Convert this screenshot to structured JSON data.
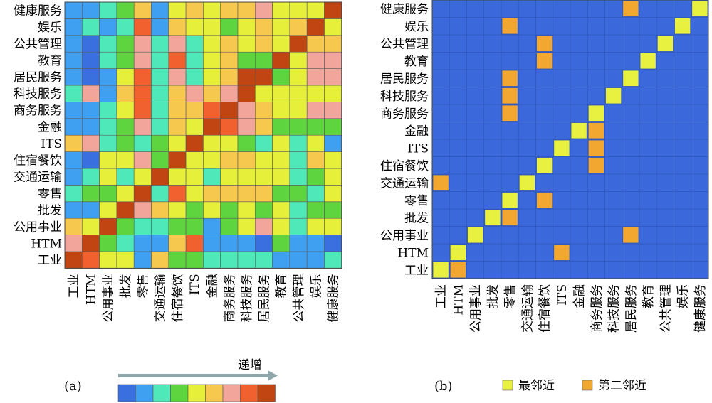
{
  "chart_data": [
    {
      "type": "heatmap",
      "panel_label": "(a)",
      "categories": [
        "工业",
        "HTM",
        "公用事业",
        "批发",
        "零售",
        "交通运输",
        "住宿餐饮",
        "ITS",
        "金融",
        "商务服务",
        "科技服务",
        "居民服务",
        "教育",
        "公共管理",
        "娱乐",
        "健康服务"
      ],
      "color_scale": [
        "#3a6fe0",
        "#3fa0f2",
        "#4fe8b8",
        "#5ed43e",
        "#e6ef3a",
        "#f7c84e",
        "#f2a59a",
        "#f0612f",
        "#c04512"
      ],
      "color_scale_label": "递增",
      "values": [
        [
          8,
          7,
          4,
          4,
          1,
          5,
          3,
          3,
          2,
          2,
          2,
          2,
          1,
          1,
          1,
          2
        ],
        [
          6,
          8,
          3,
          2,
          1,
          1,
          5,
          7,
          1,
          1,
          1,
          0,
          3,
          1,
          1,
          0
        ],
        [
          5,
          4,
          8,
          3,
          2,
          2,
          3,
          3,
          1,
          3,
          4,
          6,
          4,
          2,
          4,
          4
        ],
        [
          1,
          1,
          4,
          8,
          6,
          5,
          4,
          3,
          4,
          3,
          4,
          3,
          4,
          2,
          3,
          3
        ],
        [
          2,
          3,
          3,
          4,
          8,
          2,
          7,
          4,
          5,
          5,
          5,
          5,
          3,
          3,
          2,
          4
        ],
        [
          1,
          2,
          4,
          2,
          4,
          8,
          4,
          4,
          2,
          4,
          4,
          4,
          4,
          2,
          3,
          4
        ],
        [
          1,
          0,
          4,
          4,
          6,
          3,
          8,
          4,
          4,
          5,
          5,
          4,
          4,
          2,
          5,
          4
        ],
        [
          5,
          6,
          2,
          3,
          2,
          3,
          4,
          8,
          4,
          4,
          3,
          2,
          4,
          2,
          4,
          1
        ],
        [
          1,
          1,
          2,
          3,
          6,
          2,
          5,
          4,
          8,
          7,
          6,
          5,
          3,
          3,
          3,
          3
        ],
        [
          1,
          1,
          2,
          4,
          7,
          2,
          5,
          5,
          7,
          8,
          6,
          5,
          4,
          4,
          6,
          6
        ],
        [
          2,
          6,
          1,
          5,
          7,
          2,
          5,
          6,
          5,
          6,
          8,
          4,
          4,
          4,
          4,
          4
        ],
        [
          1,
          0,
          1,
          4,
          7,
          2,
          6,
          2,
          4,
          5,
          8,
          8,
          3,
          4,
          6,
          6
        ],
        [
          1,
          0,
          2,
          3,
          6,
          2,
          7,
          2,
          4,
          5,
          3,
          3,
          8,
          4,
          6,
          6
        ],
        [
          1,
          0,
          2,
          3,
          6,
          2,
          6,
          2,
          4,
          5,
          4,
          5,
          4,
          8,
          5,
          5
        ],
        [
          1,
          2,
          1,
          2,
          7,
          1,
          5,
          4,
          4,
          3,
          4,
          5,
          4,
          5,
          8,
          4
        ],
        [
          1,
          1,
          2,
          3,
          5,
          1,
          4,
          5,
          4,
          5,
          5,
          6,
          4,
          4,
          4,
          8
        ]
      ]
    },
    {
      "type": "heatmap",
      "panel_label": "(b)",
      "categories": [
        "工业",
        "HTM",
        "公用事业",
        "批发",
        "零售",
        "交通运输",
        "住宿餐饮",
        "ITS",
        "金融",
        "商务服务",
        "科技服务",
        "居民服务",
        "教育",
        "公共管理",
        "娱乐",
        "健康服务"
      ],
      "background_color": "#3b69dc",
      "legend": [
        {
          "label": "最邻近",
          "color": "#e8f040"
        },
        {
          "label": "第二邻近",
          "color": "#f2a830"
        }
      ],
      "nearest": [
        [
          0,
          0
        ],
        [
          1,
          1
        ],
        [
          2,
          2
        ],
        [
          3,
          3
        ],
        [
          4,
          4
        ],
        [
          5,
          5
        ],
        [
          6,
          6
        ],
        [
          7,
          7
        ],
        [
          8,
          8
        ],
        [
          9,
          9
        ],
        [
          10,
          10
        ],
        [
          11,
          11
        ],
        [
          12,
          12
        ],
        [
          13,
          13
        ],
        [
          14,
          14
        ],
        [
          15,
          15
        ]
      ],
      "second_nearest": [
        [
          0,
          1
        ],
        [
          1,
          7
        ],
        [
          2,
          11
        ],
        [
          3,
          4
        ],
        [
          4,
          6
        ],
        [
          5,
          0
        ],
        [
          6,
          9
        ],
        [
          7,
          9
        ],
        [
          8,
          9
        ],
        [
          9,
          4
        ],
        [
          10,
          4
        ],
        [
          11,
          4
        ],
        [
          12,
          6
        ],
        [
          13,
          6
        ],
        [
          14,
          4
        ],
        [
          15,
          11
        ]
      ]
    }
  ]
}
